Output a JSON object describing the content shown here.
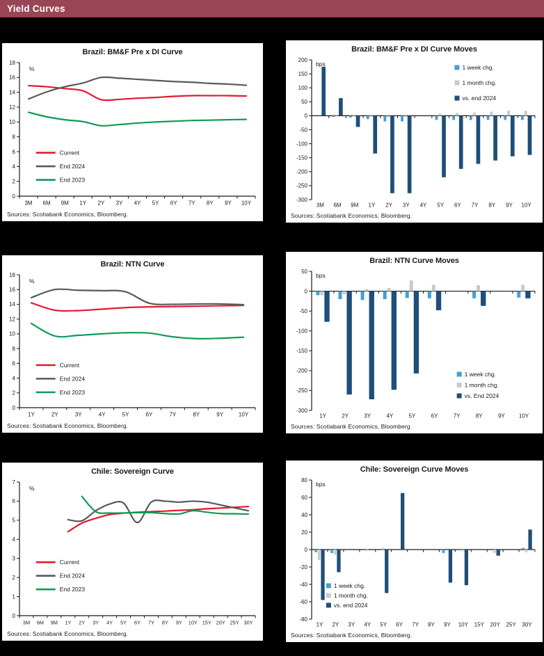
{
  "header": {
    "title": "Yield Curves"
  },
  "colors": {
    "page_bg": "#000000",
    "panel_bg": "#FFFFFF",
    "header_bg": "#9A4456",
    "header_text": "#FFFFFF",
    "text": "#1A1A1A",
    "axis": "#1A1A1A",
    "current": "#E3192F",
    "end_2024": "#58595B",
    "end_2023": "#0E9B57",
    "week": "#459FD0",
    "month": "#C9CACC",
    "vs_2024": "#1F4E79"
  },
  "chart_data": [
    {
      "id": "brazil-bmf-curve",
      "type": "line",
      "title": "Brazil: BM&F Pre x DI Curve",
      "unit_label": "%",
      "ylim": [
        0,
        18
      ],
      "ystep": 2,
      "grid": false,
      "categories": [
        "3M",
        "6M",
        "9M",
        "1Y",
        "2Y",
        "3Y",
        "4Y",
        "5Y",
        "6Y",
        "7Y",
        "8Y",
        "9Y",
        "10Y"
      ],
      "series": [
        {
          "name": "Current",
          "color": "current",
          "values": [
            14.9,
            14.75,
            14.5,
            14.2,
            13.0,
            13.05,
            13.2,
            13.3,
            13.45,
            13.55,
            13.55,
            13.55,
            13.5
          ]
        },
        {
          "name": "End 2024",
          "color": "end_2024",
          "values": [
            13.1,
            14.05,
            14.75,
            15.25,
            16.0,
            15.9,
            15.75,
            15.6,
            15.45,
            15.35,
            15.2,
            15.1,
            14.95
          ]
        },
        {
          "name": "End 2023",
          "color": "end_2023",
          "values": [
            11.3,
            10.7,
            10.3,
            10.05,
            9.5,
            9.65,
            9.85,
            10.0,
            10.1,
            10.2,
            10.25,
            10.3,
            10.35
          ]
        }
      ],
      "legend": {
        "pos": "inside-left",
        "x": 0.07,
        "y": 0.675,
        "spacing": 19.5
      },
      "sources": "Sources: Scotiabank Economics, Bloomberg."
    },
    {
      "id": "brazil-bmf-moves",
      "type": "bar",
      "title": "Brazil: BM&F Pre x DI Curve Moves",
      "unit_label": "bps",
      "ylim": [
        -300,
        200
      ],
      "ystep": 50,
      "grid": false,
      "categories": [
        "3M",
        "6M",
        "9M",
        "1Y",
        "2Y",
        "3Y",
        "4Y",
        "5Y",
        "6Y",
        "7Y",
        "8Y",
        "9Y",
        "10Y"
      ],
      "series": [
        {
          "name": "1 week chg.",
          "color": "week",
          "values": [
            0,
            -4,
            -6,
            -12,
            -20,
            -20,
            0,
            -15,
            -15,
            -15,
            -15,
            -15,
            -15
          ]
        },
        {
          "name": "1 month chg.",
          "color": "month",
          "values": [
            0,
            -1,
            -2,
            -3,
            -6,
            -4,
            0,
            8,
            10,
            12,
            15,
            18,
            18
          ]
        },
        {
          "name": "vs. end 2024",
          "color": "vs_2024",
          "values": [
            175,
            63,
            -40,
            -135,
            -277,
            -277,
            0,
            -220,
            -190,
            -172,
            -160,
            -145,
            -140
          ]
        }
      ],
      "legend": {
        "pos": "top-right",
        "x": 0.64,
        "y": 0.055,
        "spacing": 22
      },
      "sources": "Sources: Scotiabank Economics, Bloomberg."
    },
    {
      "id": "brazil-ntn-curve",
      "type": "line",
      "title": "Brazil: NTN Curve",
      "unit_label": "%",
      "ylim": [
        0,
        18
      ],
      "ystep": 2,
      "grid": false,
      "categories": [
        "1Y",
        "2Y",
        "3Y",
        "4Y",
        "5Y",
        "6Y",
        "7Y",
        "8Y",
        "9Y",
        "10Y"
      ],
      "series": [
        {
          "name": "Current",
          "color": "current",
          "values": [
            14.2,
            13.2,
            13.15,
            13.35,
            13.55,
            13.65,
            13.7,
            13.75,
            13.8,
            13.85
          ]
        },
        {
          "name": "End 2024",
          "color": "end_2024",
          "values": [
            14.9,
            16.0,
            15.9,
            15.85,
            15.7,
            14.15,
            14.0,
            14.05,
            14.05,
            13.95
          ]
        },
        {
          "name": "End 2023",
          "color": "end_2023",
          "values": [
            11.4,
            9.7,
            9.8,
            10.0,
            10.15,
            10.1,
            9.6,
            9.35,
            9.4,
            9.55
          ]
        }
      ],
      "legend": {
        "pos": "inside-left",
        "x": 0.07,
        "y": 0.68,
        "spacing": 19.5
      },
      "sources": "Sources: Scotiabank Economics, Bloomberg."
    },
    {
      "id": "brazil-ntn-moves",
      "type": "bar",
      "title": "Brazil: NTN Curve Moves",
      "unit_label": "bps",
      "ylim": [
        -300,
        50
      ],
      "ystep": 50,
      "grid": false,
      "categories": [
        "1Y",
        "2Y",
        "3Y",
        "4Y",
        "5Y",
        "6Y",
        "7Y",
        "8Y",
        "9Y",
        "10Y"
      ],
      "series": [
        {
          "name": "1 week chg.",
          "color": "week",
          "values": [
            -10,
            -20,
            -22,
            -20,
            -17,
            -18,
            0,
            -18,
            0,
            -16
          ]
        },
        {
          "name": "1 month chg.",
          "color": "month",
          "values": [
            -10,
            -8,
            5,
            8,
            27,
            16,
            0,
            15,
            0,
            16
          ]
        },
        {
          "name": "vs. End 2024",
          "color": "vs_2024",
          "values": [
            -77,
            -260,
            -272,
            -248,
            -207,
            -48,
            0,
            -37,
            0,
            -18
          ]
        }
      ],
      "legend": {
        "pos": "bottom-right",
        "x": 0.65,
        "y": 0.74,
        "spacing": 15.5
      },
      "sources": "Sources: Scotiabank Economics, Bloomberg."
    },
    {
      "id": "chile-sovereign-curve",
      "type": "line",
      "title": "Chile: Sovereign Curve",
      "unit_label": "%",
      "ylim": [
        0,
        7
      ],
      "ystep": 1,
      "grid": false,
      "categories": [
        "3M",
        "6M",
        "9M",
        "1Y",
        "2Y",
        "3Y",
        "4Y",
        "5Y",
        "6Y",
        "7Y",
        "8Y",
        "9Y",
        "10Y",
        "15Y",
        "20Y",
        "25Y",
        "30Y"
      ],
      "series": [
        {
          "name": "Current",
          "color": "current",
          "values": [
            null,
            null,
            null,
            4.4,
            4.85,
            5.1,
            5.3,
            5.37,
            5.42,
            5.45,
            5.48,
            5.52,
            5.55,
            5.6,
            5.64,
            5.68,
            5.72
          ]
        },
        {
          "name": "End 2024",
          "color": "end_2024",
          "values": [
            null,
            null,
            null,
            5.03,
            4.97,
            5.5,
            5.85,
            5.9,
            4.88,
            5.95,
            6.0,
            5.95,
            6.0,
            5.95,
            5.8,
            5.65,
            5.5
          ]
        },
        {
          "name": "End 2023",
          "color": "end_2023",
          "values": [
            null,
            null,
            null,
            null,
            6.25,
            5.45,
            5.38,
            5.38,
            5.4,
            5.4,
            5.35,
            5.33,
            5.5,
            5.42,
            5.35,
            5.34,
            5.32
          ]
        }
      ],
      "legend": {
        "pos": "inside-left",
        "x": 0.07,
        "y": 0.6,
        "spacing": 19.5
      },
      "sources": "Sources: Scotiabank Economics, Bloomberg."
    },
    {
      "id": "chile-sovereign-moves",
      "type": "bar",
      "title": "Chile: Sovereign Curve Moves",
      "unit_label": "bps",
      "ylim": [
        -80,
        80
      ],
      "ystep": 20,
      "grid": false,
      "categories": [
        "1Y",
        "2Y",
        "3Y",
        "4Y",
        "5Y",
        "6Y",
        "7Y",
        "8Y",
        "9Y",
        "10Y",
        "15Y",
        "20Y",
        "25Y",
        "30Y"
      ],
      "series": [
        {
          "name": "1 week chg.",
          "color": "week",
          "values": [
            -3,
            -4,
            0,
            0,
            0,
            0,
            0,
            0,
            -4,
            -1,
            0,
            0,
            0,
            2
          ]
        },
        {
          "name": "1 month chg.",
          "color": "month",
          "values": [
            -12,
            -6,
            0,
            1,
            2,
            0,
            0,
            0,
            0,
            -2,
            0,
            -4,
            0,
            -3
          ]
        },
        {
          "name": "vs. end 2024",
          "color": "vs_2024",
          "values": [
            -58,
            -26,
            0,
            0,
            -50,
            65,
            0,
            0,
            -38,
            -41,
            0,
            -7,
            0,
            23
          ]
        }
      ],
      "legend": {
        "pos": "bottom-left",
        "x": 0.065,
        "y": 0.76,
        "spacing": 14
      },
      "sources": "Sources: Scotiabank Economics, Bloomberg."
    }
  ]
}
